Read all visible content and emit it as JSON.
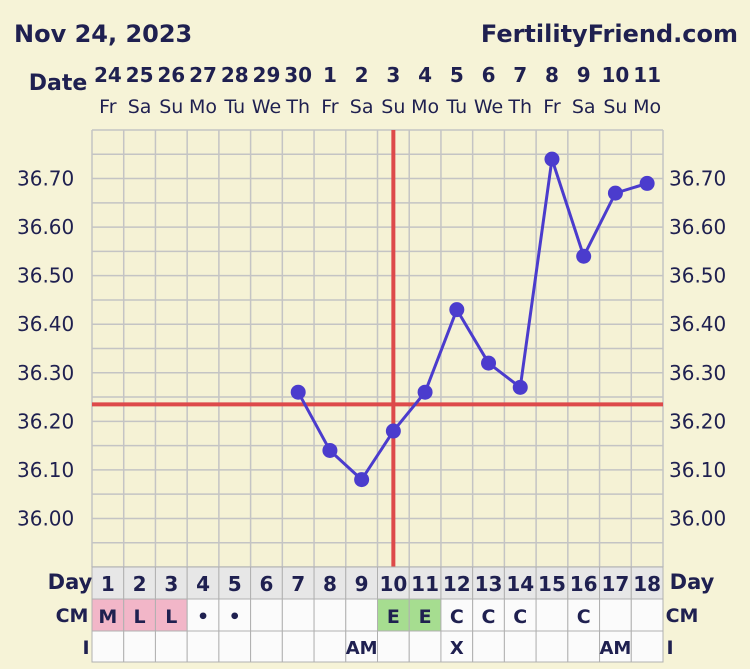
{
  "header": {
    "date": "Nov 24, 2023",
    "site": "FertilityFriend.com"
  },
  "row_labels": {
    "date": "Date",
    "day": "Day",
    "cm": "CM",
    "i": "I"
  },
  "colors": {
    "background": "#f6f3d7",
    "grid": "#c4c4c4",
    "line": "#4b3ccd",
    "coverline": "#dd4a4a",
    "text": "#1f2050",
    "cm_pink": "#f2b6c8",
    "cm_green": "#a6dd90",
    "cell": "#fbfbfb"
  },
  "chart_data": {
    "type": "line",
    "title": "",
    "dates": [
      "24",
      "25",
      "26",
      "27",
      "28",
      "29",
      "30",
      "1",
      "2",
      "3",
      "4",
      "5",
      "6",
      "7",
      "8",
      "9",
      "10",
      "11"
    ],
    "weekdays": [
      "Fr",
      "Sa",
      "Su",
      "Mo",
      "Tu",
      "We",
      "Th",
      "Fr",
      "Sa",
      "Su",
      "Mo",
      "Tu",
      "We",
      "Th",
      "Fr",
      "Sa",
      "Su",
      "Mo"
    ],
    "cycle_days": [
      1,
      2,
      3,
      4,
      5,
      6,
      7,
      8,
      9,
      10,
      11,
      12,
      13,
      14,
      15,
      16,
      17,
      18
    ],
    "y_ticks": [
      "36.70",
      "36.60",
      "36.50",
      "36.40",
      "36.30",
      "36.20",
      "36.10",
      "36.00"
    ],
    "ylim": [
      35.9,
      36.8
    ],
    "temperatures": [
      null,
      null,
      null,
      null,
      null,
      null,
      36.26,
      36.14,
      36.08,
      36.18,
      36.26,
      36.43,
      36.32,
      36.27,
      36.74,
      36.54,
      36.67,
      36.69
    ],
    "coverline": 36.235,
    "ovulation_day": 10,
    "cervical_mucus": [
      "M",
      "L",
      "L",
      "•",
      "•",
      "",
      "",
      "",
      "",
      "E",
      "E",
      "C",
      "C",
      "C",
      "",
      "C",
      "",
      ""
    ],
    "cervical_mucus_highlight": [
      "pink",
      "pink",
      "pink",
      "",
      "",
      "",
      "",
      "",
      "",
      "green",
      "green",
      "",
      "",
      "",
      "",
      "",
      "",
      ""
    ],
    "intercourse": [
      "",
      "",
      "",
      "",
      "",
      "",
      "",
      "",
      "AM",
      "",
      "",
      "X",
      "",
      "",
      "",
      "",
      "AM",
      ""
    ],
    "grid": true,
    "legend": "none"
  }
}
